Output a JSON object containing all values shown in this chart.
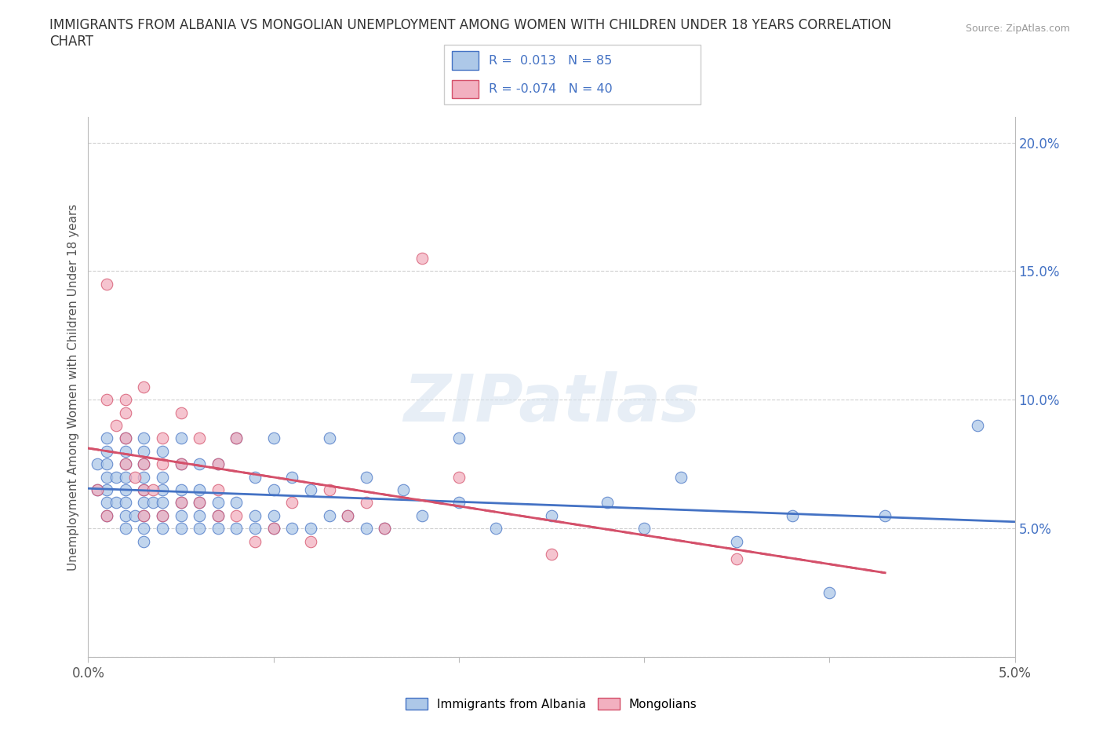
{
  "title": "IMMIGRANTS FROM ALBANIA VS MONGOLIAN UNEMPLOYMENT AMONG WOMEN WITH CHILDREN UNDER 18 YEARS CORRELATION\nCHART",
  "source": "Source: ZipAtlas.com",
  "ylabel": "Unemployment Among Women with Children Under 18 years",
  "xlim": [
    0.0,
    0.05
  ],
  "ylim": [
    0.0,
    0.21
  ],
  "xticks": [
    0.0,
    0.01,
    0.02,
    0.03,
    0.04,
    0.05
  ],
  "xticklabels": [
    "0.0%",
    "",
    "",
    "",
    "",
    "5.0%"
  ],
  "yticks": [
    0.0,
    0.05,
    0.1,
    0.15,
    0.2
  ],
  "yticklabels": [
    "",
    "5.0%",
    "10.0%",
    "15.0%",
    "20.0%"
  ],
  "color_blue": "#adc8e8",
  "color_pink": "#f2b0c0",
  "color_line_blue": "#4472c4",
  "color_line_pink": "#d4506a",
  "albania_x": [
    0.0005,
    0.0005,
    0.001,
    0.001,
    0.001,
    0.001,
    0.001,
    0.001,
    0.001,
    0.0015,
    0.0015,
    0.002,
    0.002,
    0.002,
    0.002,
    0.002,
    0.002,
    0.002,
    0.002,
    0.0025,
    0.003,
    0.003,
    0.003,
    0.003,
    0.003,
    0.003,
    0.003,
    0.003,
    0.003,
    0.0035,
    0.004,
    0.004,
    0.004,
    0.004,
    0.004,
    0.004,
    0.005,
    0.005,
    0.005,
    0.005,
    0.005,
    0.005,
    0.006,
    0.006,
    0.006,
    0.006,
    0.006,
    0.007,
    0.007,
    0.007,
    0.007,
    0.008,
    0.008,
    0.008,
    0.009,
    0.009,
    0.009,
    0.01,
    0.01,
    0.01,
    0.01,
    0.011,
    0.011,
    0.012,
    0.012,
    0.013,
    0.013,
    0.014,
    0.015,
    0.015,
    0.016,
    0.017,
    0.018,
    0.02,
    0.02,
    0.022,
    0.025,
    0.028,
    0.03,
    0.032,
    0.035,
    0.038,
    0.04,
    0.043,
    0.048
  ],
  "albania_y": [
    0.065,
    0.075,
    0.055,
    0.06,
    0.065,
    0.07,
    0.075,
    0.08,
    0.085,
    0.06,
    0.07,
    0.05,
    0.055,
    0.06,
    0.065,
    0.07,
    0.075,
    0.08,
    0.085,
    0.055,
    0.045,
    0.05,
    0.055,
    0.06,
    0.065,
    0.07,
    0.075,
    0.08,
    0.085,
    0.06,
    0.05,
    0.055,
    0.06,
    0.065,
    0.07,
    0.08,
    0.05,
    0.055,
    0.06,
    0.065,
    0.075,
    0.085,
    0.05,
    0.055,
    0.06,
    0.065,
    0.075,
    0.05,
    0.055,
    0.06,
    0.075,
    0.05,
    0.06,
    0.085,
    0.05,
    0.055,
    0.07,
    0.05,
    0.055,
    0.065,
    0.085,
    0.05,
    0.07,
    0.05,
    0.065,
    0.055,
    0.085,
    0.055,
    0.05,
    0.07,
    0.05,
    0.065,
    0.055,
    0.06,
    0.085,
    0.05,
    0.055,
    0.06,
    0.05,
    0.07,
    0.045,
    0.055,
    0.025,
    0.055,
    0.09
  ],
  "mongolia_x": [
    0.0005,
    0.001,
    0.001,
    0.001,
    0.0015,
    0.002,
    0.002,
    0.002,
    0.002,
    0.0025,
    0.003,
    0.003,
    0.003,
    0.003,
    0.0035,
    0.004,
    0.004,
    0.004,
    0.005,
    0.005,
    0.005,
    0.006,
    0.006,
    0.007,
    0.007,
    0.007,
    0.008,
    0.008,
    0.009,
    0.01,
    0.011,
    0.012,
    0.013,
    0.014,
    0.015,
    0.016,
    0.018,
    0.02,
    0.025,
    0.035
  ],
  "mongolia_y": [
    0.065,
    0.055,
    0.1,
    0.145,
    0.09,
    0.075,
    0.085,
    0.095,
    0.1,
    0.07,
    0.055,
    0.065,
    0.075,
    0.105,
    0.065,
    0.055,
    0.075,
    0.085,
    0.06,
    0.075,
    0.095,
    0.06,
    0.085,
    0.055,
    0.065,
    0.075,
    0.055,
    0.085,
    0.045,
    0.05,
    0.06,
    0.045,
    0.065,
    0.055,
    0.06,
    0.05,
    0.155,
    0.07,
    0.04,
    0.038
  ]
}
